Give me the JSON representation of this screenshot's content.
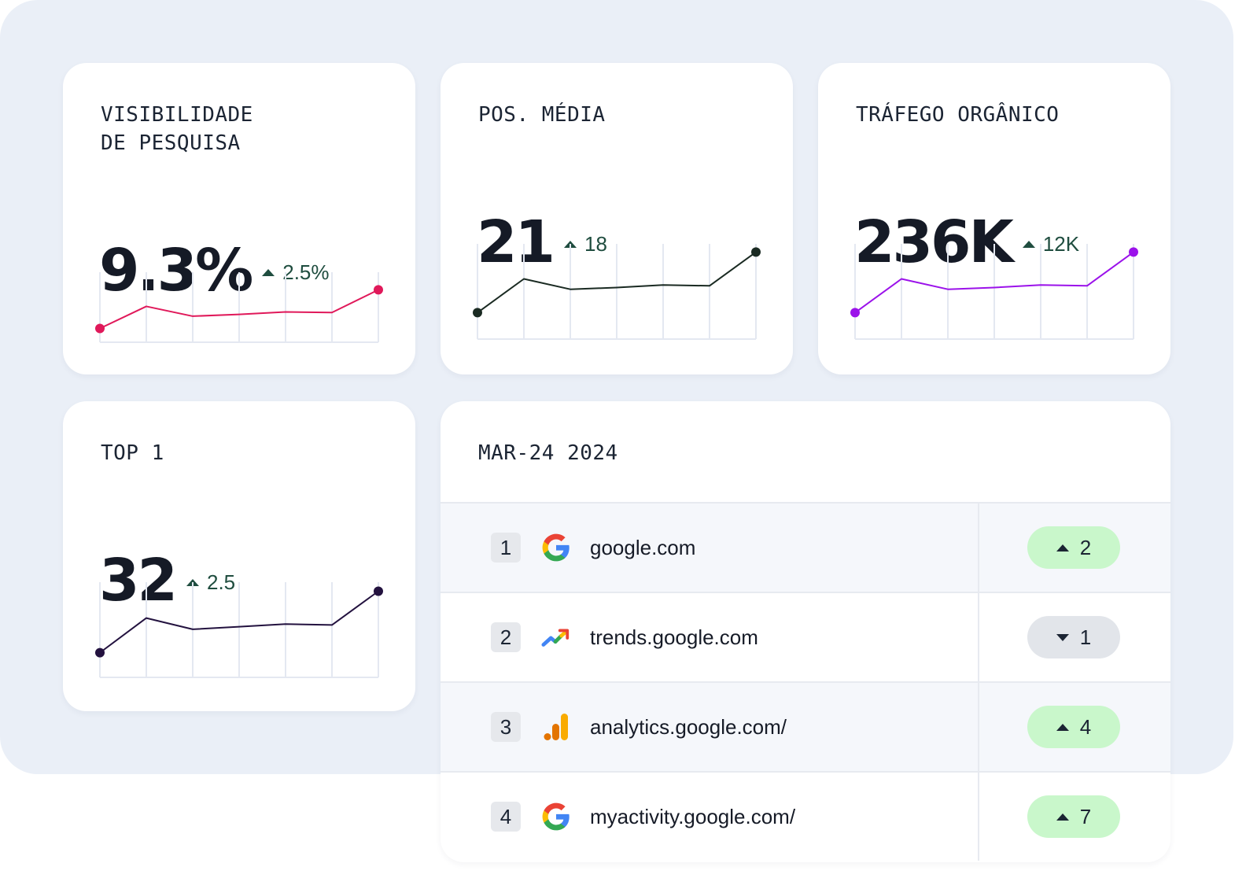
{
  "colors": {
    "background_panel": "#eaeff7",
    "card": "#ffffff",
    "delta_positive": "#1f4d3f",
    "badge_up": "#c9f7cb",
    "badge_down": "#e2e5ea"
  },
  "kpis": [
    {
      "label_line1": "VISIBILIDADE",
      "label_line2": "DE PESQUISA",
      "value": "9.3%",
      "delta": "2.5%",
      "delta_direction": "up",
      "series_color": "#e0195a",
      "sparkline": [
        0.16,
        0.52,
        0.36,
        0.39,
        0.43,
        0.42,
        0.79
      ]
    },
    {
      "label_line1": "POS. MÉDIA",
      "value": "21",
      "delta": "18",
      "delta_direction": "up",
      "series_color": "#1a2a22",
      "sparkline": [
        0.26,
        0.65,
        0.53,
        0.55,
        0.58,
        0.57,
        0.96
      ]
    },
    {
      "label_line1": "TRÁFEGO ORGÂNICO",
      "value": "236K",
      "delta": "12K",
      "delta_direction": "up",
      "series_color": "#9b12ea",
      "sparkline": [
        0.26,
        0.65,
        0.53,
        0.55,
        0.58,
        0.57,
        0.96
      ]
    },
    {
      "label_line1": "TOP 1",
      "value": "32",
      "delta": "2.5",
      "delta_direction": "up",
      "series_color": "#23123f",
      "sparkline": [
        0.24,
        0.64,
        0.51,
        0.54,
        0.57,
        0.56,
        0.95
      ]
    }
  ],
  "ranking": {
    "title": "MAR-24 2024",
    "rows": [
      {
        "rank": "1",
        "icon": "google-icon",
        "domain": "google.com",
        "change": "2",
        "direction": "up"
      },
      {
        "rank": "2",
        "icon": "google-trends-icon",
        "domain": "trends.google.com",
        "change": "1",
        "direction": "down"
      },
      {
        "rank": "3",
        "icon": "google-analytics-icon",
        "domain": "analytics.google.com/",
        "change": "4",
        "direction": "up"
      },
      {
        "rank": "4",
        "icon": "google-icon",
        "domain": "myactivity.google.com/",
        "change": "7",
        "direction": "up"
      }
    ]
  }
}
